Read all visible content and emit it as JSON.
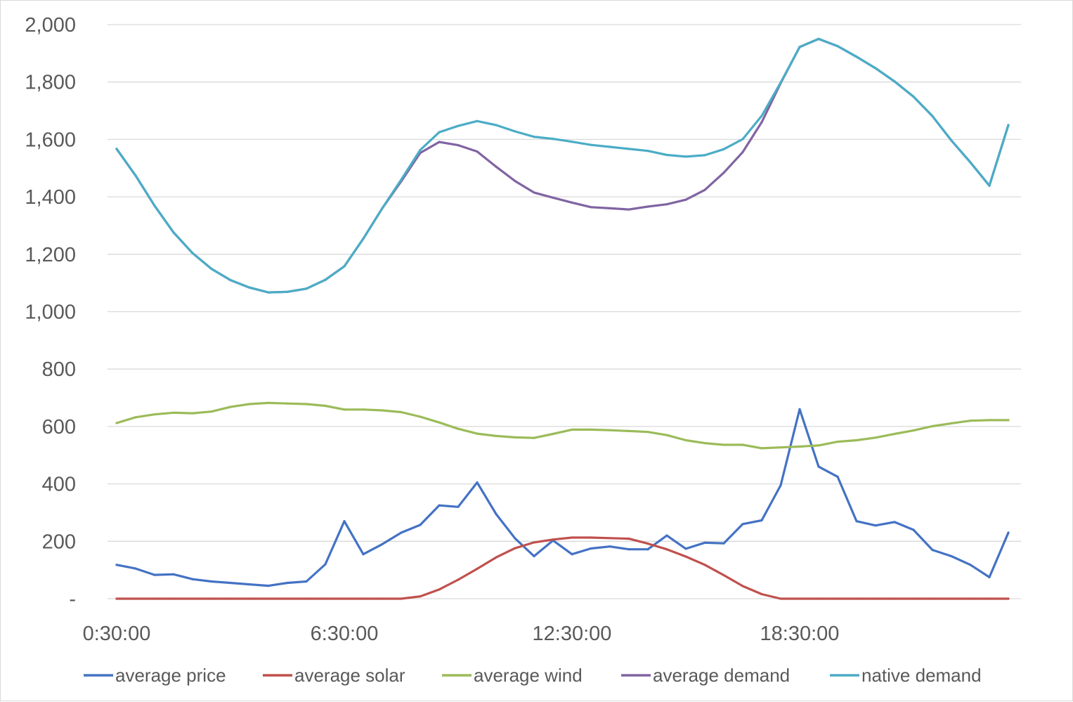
{
  "chart_data": {
    "type": "line",
    "title": "",
    "xlabel": "",
    "ylabel": "",
    "ylim": [
      0,
      2000
    ],
    "y_ticks": [
      0,
      200,
      400,
      600,
      800,
      1000,
      1200,
      1400,
      1600,
      1800,
      2000
    ],
    "y_tick_labels": [
      "-",
      "200",
      "400",
      "600",
      "800",
      "1,000",
      "1,200",
      "1,400",
      "1,600",
      "1,800",
      "2,000"
    ],
    "x": [
      "0:30:00",
      "1:00:00",
      "1:30:00",
      "2:00:00",
      "2:30:00",
      "3:00:00",
      "3:30:00",
      "4:00:00",
      "4:30:00",
      "5:00:00",
      "5:30:00",
      "6:00:00",
      "6:30:00",
      "7:00:00",
      "7:30:00",
      "8:00:00",
      "8:30:00",
      "9:00:00",
      "9:30:00",
      "10:00:00",
      "10:30:00",
      "11:00:00",
      "11:30:00",
      "12:00:00",
      "12:30:00",
      "13:00:00",
      "13:30:00",
      "14:00:00",
      "14:30:00",
      "15:00:00",
      "15:30:00",
      "16:00:00",
      "16:30:00",
      "17:00:00",
      "17:30:00",
      "18:00:00",
      "18:30:00",
      "19:00:00",
      "19:30:00",
      "20:00:00",
      "20:30:00",
      "21:00:00",
      "21:30:00",
      "22:00:00",
      "22:30:00",
      "23:00:00",
      "23:30:00",
      "0:00:00"
    ],
    "x_tick_labels": [
      "0:30:00",
      "6:30:00",
      "12:30:00",
      "18:30:00"
    ],
    "x_tick_indices": [
      0,
      12,
      24,
      36
    ],
    "grid": true,
    "legend_position": "bottom",
    "series": [
      {
        "name": "average price",
        "color": "#4472C4",
        "values": [
          118,
          105,
          83,
          85,
          68,
          60,
          55,
          50,
          45,
          55,
          60,
          120,
          270,
          155,
          190,
          230,
          257,
          325,
          320,
          405,
          295,
          210,
          148,
          203,
          155,
          175,
          182,
          172,
          172,
          220,
          174,
          195,
          193,
          260,
          273,
          395,
          660,
          460,
          425,
          270,
          255,
          267,
          240,
          170,
          148,
          118,
          75,
          230
        ]
      },
      {
        "name": "average solar",
        "color": "#C0504D",
        "values": [
          0,
          0,
          0,
          0,
          0,
          0,
          0,
          0,
          0,
          0,
          0,
          0,
          0,
          0,
          0,
          0,
          8,
          32,
          66,
          104,
          144,
          176,
          196,
          206,
          213,
          213,
          211,
          209,
          192,
          172,
          147,
          118,
          82,
          44,
          16,
          0,
          0,
          0,
          0,
          0,
          0,
          0,
          0,
          0,
          0,
          0,
          0,
          0
        ]
      },
      {
        "name": "average wind",
        "color": "#9BBB59",
        "values": [
          612,
          632,
          642,
          648,
          646,
          652,
          668,
          678,
          682,
          680,
          678,
          672,
          659,
          659,
          656,
          650,
          634,
          614,
          592,
          575,
          567,
          562,
          560,
          574,
          589,
          589,
          587,
          584,
          581,
          570,
          552,
          542,
          536,
          536,
          524,
          527,
          530,
          534,
          547,
          552,
          561,
          574,
          586,
          601,
          611,
          620,
          622,
          622
        ]
      },
      {
        "name": "average demand",
        "color": "#8064A2",
        "values": [
          1567,
          1474,
          1369,
          1276,
          1204,
          1149,
          1110,
          1084,
          1067,
          1069,
          1080,
          1111,
          1158,
          1254,
          1360,
          1454,
          1553,
          1591,
          1580,
          1558,
          1505,
          1455,
          1415,
          1397,
          1380,
          1364,
          1360,
          1356,
          1366,
          1374,
          1390,
          1424,
          1484,
          1556,
          1660,
          1796,
          1922,
          1950,
          1925,
          1888,
          1848,
          1802,
          1749,
          1681,
          1596,
          1520,
          1439,
          1650
        ]
      },
      {
        "name": "native demand",
        "color": "#4BACC6",
        "values": [
          1567,
          1474,
          1369,
          1276,
          1204,
          1149,
          1110,
          1084,
          1067,
          1069,
          1080,
          1111,
          1158,
          1254,
          1360,
          1460,
          1563,
          1625,
          1647,
          1664,
          1650,
          1628,
          1609,
          1602,
          1592,
          1581,
          1574,
          1567,
          1560,
          1546,
          1540,
          1545,
          1566,
          1601,
          1682,
          1798,
          1922,
          1950,
          1925,
          1888,
          1848,
          1802,
          1749,
          1681,
          1596,
          1520,
          1439,
          1650
        ]
      }
    ]
  }
}
